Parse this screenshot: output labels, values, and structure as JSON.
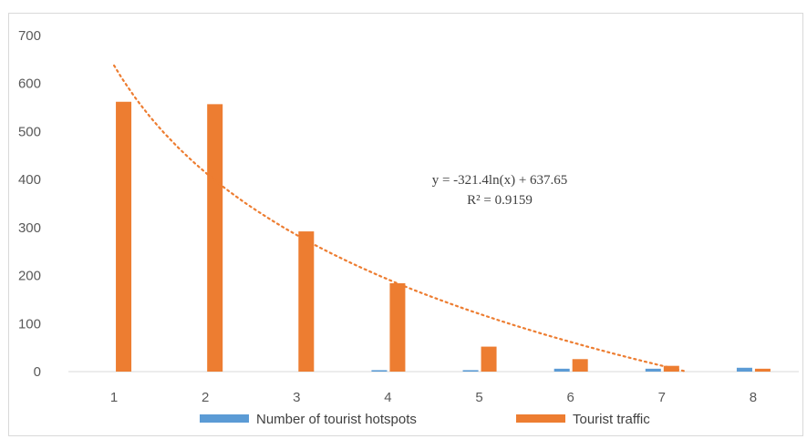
{
  "chart_data": {
    "type": "bar",
    "categories": [
      "1",
      "2",
      "3",
      "4",
      "5",
      "6",
      "7",
      "8"
    ],
    "series": [
      {
        "name": "Number of tourist hotspots",
        "color": "#5b9bd5",
        "values": [
          0,
          0,
          0,
          3,
          3,
          6,
          6,
          8
        ]
      },
      {
        "name": "Tourist traffic",
        "color": "#ed7d31",
        "values": [
          562,
          557,
          292,
          184,
          52,
          26,
          12,
          6
        ]
      }
    ],
    "trendline": {
      "type": "logarithmic",
      "series": "Tourist traffic",
      "a": -321.4,
      "b": 637.65,
      "color": "#ed7d31",
      "style": "dotted",
      "equation": "y = -321.4ln(x)  + 637.65",
      "r_squared": "R² = 0.9159"
    },
    "y_ticks": [
      "0",
      "100",
      "200",
      "300",
      "400",
      "500",
      "600",
      "700"
    ],
    "ylim": [
      0,
      700
    ],
    "grid": false,
    "legend": "bottom"
  }
}
